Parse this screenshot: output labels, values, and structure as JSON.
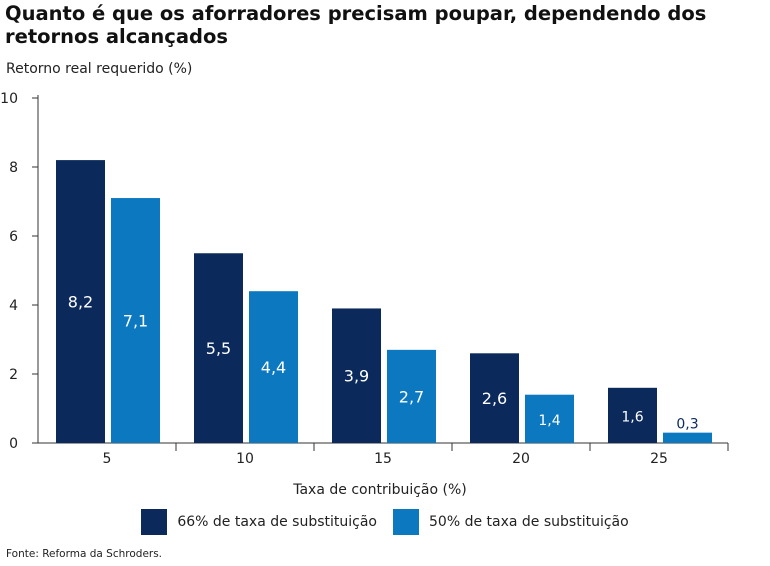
{
  "title": "Quanto é que os aforradores precisam poupar, dependendo dos retornos alcançados",
  "source": "Fonte: Reforma da Schroders.",
  "chart_data": {
    "type": "bar",
    "title": "Quanto é que os aforradores precisam poupar, dependendo dos retornos alcançados",
    "ylabel": "Retorno real requerido (%)",
    "xlabel": "Taxa de contribuição (%)",
    "categories": [
      "5",
      "10",
      "15",
      "20",
      "25"
    ],
    "series": [
      {
        "name": "66% de taxa de substituição",
        "color": "#0b2a5b",
        "values": [
          8.2,
          5.5,
          3.9,
          2.6,
          1.6
        ],
        "labels": [
          "8,2",
          "5,5",
          "3,9",
          "2,6",
          "1,6"
        ]
      },
      {
        "name": "50% de taxa de substituição",
        "color": "#0b78bf",
        "values": [
          7.1,
          4.4,
          2.7,
          1.4,
          0.3
        ],
        "labels": [
          "7,1",
          "4,4",
          "2,7",
          "1,4",
          "0,3"
        ]
      }
    ],
    "ylim": [
      0,
      10
    ],
    "yticks": [
      0,
      2,
      4,
      6,
      8,
      10
    ],
    "grid": false,
    "legend": "bottom"
  }
}
